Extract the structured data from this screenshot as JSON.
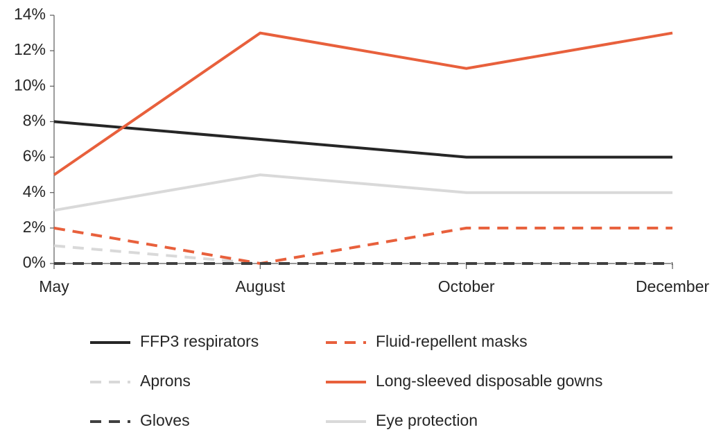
{
  "chart_data": {
    "type": "line",
    "categories": [
      "May",
      "August",
      "October",
      "December"
    ],
    "series": [
      {
        "name": "FFP3 respirators",
        "color": "#262626",
        "style": "solid",
        "values": [
          8,
          7,
          6,
          6
        ]
      },
      {
        "name": "Fluid-repellent masks",
        "color": "#e8603c",
        "style": "dashed",
        "values": [
          2,
          0,
          2,
          2
        ]
      },
      {
        "name": "Aprons",
        "color": "#d9d9d9",
        "style": "dashed",
        "values": [
          1,
          0,
          0,
          0
        ]
      },
      {
        "name": "Long-sleeved disposable gowns",
        "color": "#e8603c",
        "style": "solid",
        "values": [
          5,
          13,
          11,
          13
        ]
      },
      {
        "name": "Gloves",
        "color": "#404040",
        "style": "dashed",
        "values": [
          0,
          0,
          0,
          0
        ]
      },
      {
        "name": "Eye protection",
        "color": "#d9d9d9",
        "style": "solid",
        "values": [
          3,
          5,
          4,
          4
        ]
      }
    ],
    "ylim": [
      0,
      14
    ],
    "yticks": [
      {
        "value": 0,
        "label": "0%"
      },
      {
        "value": 2,
        "label": "2%"
      },
      {
        "value": 4,
        "label": "4%"
      },
      {
        "value": 6,
        "label": "6%"
      },
      {
        "value": 8,
        "label": "8%"
      },
      {
        "value": 10,
        "label": "10%"
      },
      {
        "value": 12,
        "label": "12%"
      },
      {
        "value": 14,
        "label": "14%"
      }
    ],
    "legend": "bottom"
  }
}
